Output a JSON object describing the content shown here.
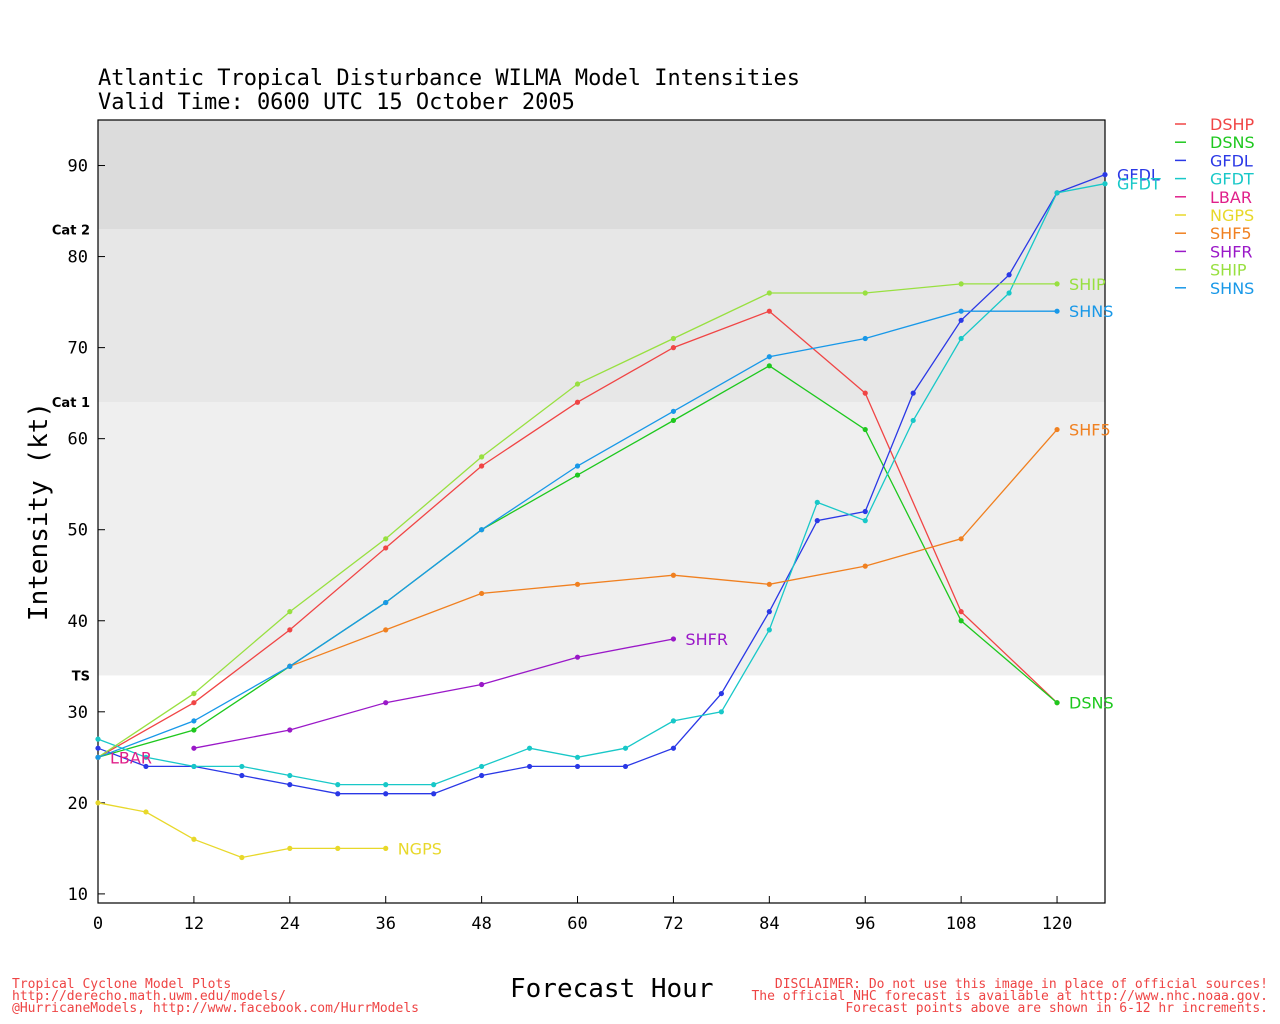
{
  "title_line1": "Atlantic Tropical Disturbance WILMA Model Intensities",
  "title_line2": "Valid Time: 0600 UTC 15 October 2005",
  "credits": [
    "Tropical Cyclone Model Plots",
    "http://derecho.math.uwm.edu/models/",
    "@HurricaneModels, http://www.facebook.com/HurrModels"
  ],
  "disclaimer": [
    "DISCLAIMER: Do not use this image in place of official sources!",
    "The official NHC forecast is available at http://www.nhc.noaa.gov.",
    "Forecast points above are shown in 6-12 hr increments."
  ],
  "chart_data": {
    "type": "line",
    "xlabel": "Forecast Hour",
    "ylabel": "Intensity (kt)",
    "xlim": [
      0,
      126
    ],
    "ylim": [
      9,
      95
    ],
    "xticks": [
      0,
      12,
      24,
      36,
      48,
      60,
      72,
      84,
      96,
      108,
      120
    ],
    "yticks": [
      10,
      20,
      30,
      40,
      50,
      60,
      70,
      80,
      90
    ],
    "bands": [
      {
        "label": "TS",
        "from": 34,
        "to": 64,
        "color": "#efefef"
      },
      {
        "label": "Cat 1",
        "from": 64,
        "to": 83,
        "color": "#e7e7e7"
      },
      {
        "label": "Cat 2",
        "from": 83,
        "to": 95,
        "color": "#dcdcdc"
      }
    ],
    "series": [
      {
        "name": "DSHP",
        "color": "#f04545",
        "points": [
          [
            0,
            25
          ],
          [
            12,
            31
          ],
          [
            24,
            39
          ],
          [
            36,
            48
          ],
          [
            48,
            57
          ],
          [
            60,
            64
          ],
          [
            72,
            70
          ],
          [
            84,
            74
          ],
          [
            96,
            65
          ],
          [
            108,
            41
          ],
          [
            120,
            31
          ]
        ],
        "end_label": "",
        "label_at": null
      },
      {
        "name": "DSNS",
        "color": "#1ec81e",
        "points": [
          [
            0,
            25
          ],
          [
            12,
            28
          ],
          [
            24,
            35
          ],
          [
            36,
            42
          ],
          [
            48,
            50
          ],
          [
            60,
            56
          ],
          [
            72,
            62
          ],
          [
            84,
            68
          ],
          [
            96,
            61
          ],
          [
            108,
            40
          ],
          [
            120,
            31
          ]
        ],
        "end_label": "DSNS",
        "label_at": [
          120,
          31
        ]
      },
      {
        "name": "GFDL",
        "color": "#2a38e6",
        "points": [
          [
            0,
            26
          ],
          [
            6,
            24
          ],
          [
            12,
            24
          ],
          [
            18,
            23
          ],
          [
            24,
            22
          ],
          [
            30,
            21
          ],
          [
            36,
            21
          ],
          [
            42,
            21
          ],
          [
            48,
            23
          ],
          [
            54,
            24
          ],
          [
            60,
            24
          ],
          [
            66,
            24
          ],
          [
            72,
            26
          ],
          [
            78,
            32
          ],
          [
            84,
            41
          ],
          [
            90,
            51
          ],
          [
            96,
            52
          ],
          [
            102,
            65
          ],
          [
            108,
            73
          ],
          [
            114,
            78
          ],
          [
            120,
            87
          ],
          [
            126,
            89
          ]
        ],
        "end_label": "GFDL",
        "label_at": [
          126,
          89
        ]
      },
      {
        "name": "GFDT",
        "color": "#18c8c8",
        "points": [
          [
            0,
            27
          ],
          [
            6,
            25
          ],
          [
            12,
            24
          ],
          [
            18,
            24
          ],
          [
            24,
            23
          ],
          [
            30,
            22
          ],
          [
            36,
            22
          ],
          [
            42,
            22
          ],
          [
            48,
            24
          ],
          [
            54,
            26
          ],
          [
            60,
            25
          ],
          [
            66,
            26
          ],
          [
            72,
            29
          ],
          [
            78,
            30
          ],
          [
            84,
            39
          ],
          [
            90,
            53
          ],
          [
            96,
            51
          ],
          [
            102,
            62
          ],
          [
            108,
            71
          ],
          [
            114,
            76
          ],
          [
            120,
            87
          ],
          [
            126,
            88
          ]
        ],
        "end_label": "GFDT",
        "label_at": [
          126,
          88
        ]
      },
      {
        "name": "LBAR",
        "color": "#e0208a",
        "points": [
          [
            0,
            25
          ]
        ],
        "end_label": "LBAR",
        "label_at": [
          0,
          25
        ]
      },
      {
        "name": "NGPS",
        "color": "#e8d82a",
        "points": [
          [
            0,
            20
          ],
          [
            6,
            19
          ],
          [
            12,
            16
          ],
          [
            18,
            14
          ],
          [
            24,
            15
          ],
          [
            30,
            15
          ],
          [
            36,
            15
          ]
        ],
        "end_label": "NGPS",
        "label_at": [
          36,
          15
        ]
      },
      {
        "name": "SHF5",
        "color": "#f08020",
        "points": [
          [
            24,
            35
          ],
          [
            36,
            39
          ],
          [
            48,
            43
          ],
          [
            60,
            44
          ],
          [
            72,
            45
          ],
          [
            84,
            44
          ],
          [
            96,
            46
          ],
          [
            108,
            49
          ],
          [
            120,
            61
          ]
        ],
        "end_label": "SHF5",
        "label_at": [
          120,
          61
        ]
      },
      {
        "name": "SHFR",
        "color": "#9a18c8",
        "points": [
          [
            12,
            26
          ],
          [
            24,
            28
          ],
          [
            36,
            31
          ],
          [
            48,
            33
          ],
          [
            60,
            36
          ],
          [
            72,
            38
          ]
        ],
        "end_label": "SHFR",
        "label_at": [
          72,
          38
        ]
      },
      {
        "name": "SHIP",
        "color": "#98e040",
        "points": [
          [
            0,
            25
          ],
          [
            12,
            32
          ],
          [
            24,
            41
          ],
          [
            36,
            49
          ],
          [
            48,
            58
          ],
          [
            60,
            66
          ],
          [
            72,
            71
          ],
          [
            84,
            76
          ],
          [
            96,
            76
          ],
          [
            108,
            77
          ],
          [
            120,
            77
          ]
        ],
        "end_label": "SHIP",
        "label_at": [
          120,
          77
        ]
      },
      {
        "name": "SHNS",
        "color": "#1898e8",
        "points": [
          [
            0,
            25
          ],
          [
            12,
            29
          ],
          [
            24,
            35
          ],
          [
            36,
            42
          ],
          [
            48,
            50
          ],
          [
            60,
            57
          ],
          [
            72,
            63
          ],
          [
            84,
            69
          ],
          [
            96,
            71
          ],
          [
            108,
            74
          ],
          [
            120,
            74
          ]
        ],
        "end_label": "SHNS",
        "label_at": [
          120,
          74
        ]
      }
    ],
    "legend_placement": "right"
  }
}
